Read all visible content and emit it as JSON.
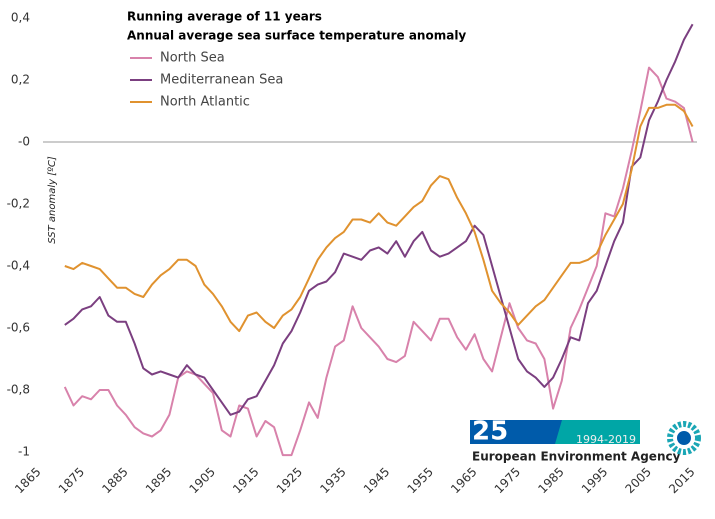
{
  "chart_data": {
    "type": "line",
    "title": "Running average of 11 years",
    "subtitle": "Annual average sea surface temperature anomaly",
    "y_label": "SST anomaly [ºC]",
    "x": [
      1870,
      1872,
      1874,
      1876,
      1878,
      1880,
      1882,
      1884,
      1886,
      1888,
      1890,
      1892,
      1894,
      1896,
      1898,
      1900,
      1902,
      1904,
      1906,
      1908,
      1910,
      1912,
      1914,
      1916,
      1918,
      1920,
      1922,
      1924,
      1926,
      1928,
      1930,
      1932,
      1934,
      1936,
      1938,
      1940,
      1942,
      1944,
      1946,
      1948,
      1950,
      1952,
      1954,
      1956,
      1958,
      1960,
      1962,
      1964,
      1966,
      1968,
      1970,
      1972,
      1974,
      1976,
      1978,
      1980,
      1982,
      1984,
      1986,
      1988,
      1990,
      1992,
      1994,
      1996,
      1998,
      2000,
      2002,
      2004,
      2006,
      2008,
      2010,
      2012,
      2014
    ],
    "series": [
      {
        "name": "North Sea",
        "color": "#d882ab",
        "values": [
          -0.79,
          -0.85,
          -0.82,
          -0.83,
          -0.8,
          -0.8,
          -0.85,
          -0.88,
          -0.92,
          -0.94,
          -0.95,
          -0.93,
          -0.88,
          -0.76,
          -0.74,
          -0.75,
          -0.78,
          -0.81,
          -0.93,
          -0.95,
          -0.85,
          -0.86,
          -0.95,
          -0.9,
          -0.92,
          -1.01,
          -1.01,
          -0.93,
          -0.84,
          -0.89,
          -0.76,
          -0.66,
          -0.64,
          -0.53,
          -0.6,
          -0.63,
          -0.66,
          -0.7,
          -0.71,
          -0.69,
          -0.58,
          -0.61,
          -0.64,
          -0.57,
          -0.57,
          -0.63,
          -0.67,
          -0.62,
          -0.7,
          -0.74,
          -0.63,
          -0.52,
          -0.6,
          -0.64,
          -0.65,
          -0.7,
          -0.86,
          -0.77,
          -0.6,
          -0.54,
          -0.47,
          -0.4,
          -0.23,
          -0.24,
          -0.15,
          -0.03,
          0.1,
          0.24,
          0.21,
          0.14,
          0.13,
          0.11,
          0.0
        ]
      },
      {
        "name": "Mediterranean Sea",
        "color": "#7b3f80",
        "values": [
          -0.59,
          -0.57,
          -0.54,
          -0.53,
          -0.5,
          -0.56,
          -0.58,
          -0.58,
          -0.65,
          -0.73,
          -0.75,
          -0.74,
          -0.75,
          -0.76,
          -0.72,
          -0.75,
          -0.76,
          -0.8,
          -0.84,
          -0.88,
          -0.87,
          -0.83,
          -0.82,
          -0.77,
          -0.72,
          -0.65,
          -0.61,
          -0.55,
          -0.48,
          -0.46,
          -0.45,
          -0.42,
          -0.36,
          -0.37,
          -0.38,
          -0.35,
          -0.34,
          -0.36,
          -0.32,
          -0.37,
          -0.32,
          -0.29,
          -0.35,
          -0.37,
          -0.36,
          -0.34,
          -0.32,
          -0.27,
          -0.3,
          -0.4,
          -0.5,
          -0.6,
          -0.7,
          -0.74,
          -0.76,
          -0.79,
          -0.76,
          -0.7,
          -0.63,
          -0.64,
          -0.52,
          -0.48,
          -0.4,
          -0.32,
          -0.26,
          -0.08,
          -0.05,
          0.07,
          0.13,
          0.2,
          0.26,
          0.33,
          0.38
        ]
      },
      {
        "name": "North Atlantic",
        "color": "#e0922f",
        "values": [
          -0.4,
          -0.41,
          -0.39,
          -0.4,
          -0.41,
          -0.44,
          -0.47,
          -0.47,
          -0.49,
          -0.5,
          -0.46,
          -0.43,
          -0.41,
          -0.38,
          -0.38,
          -0.4,
          -0.46,
          -0.49,
          -0.53,
          -0.58,
          -0.61,
          -0.56,
          -0.55,
          -0.58,
          -0.6,
          -0.56,
          -0.54,
          -0.5,
          -0.44,
          -0.38,
          -0.34,
          -0.31,
          -0.29,
          -0.25,
          -0.25,
          -0.26,
          -0.23,
          -0.26,
          -0.27,
          -0.24,
          -0.21,
          -0.19,
          -0.14,
          -0.11,
          -0.12,
          -0.18,
          -0.23,
          -0.29,
          -0.38,
          -0.48,
          -0.52,
          -0.55,
          -0.59,
          -0.56,
          -0.53,
          -0.51,
          -0.47,
          -0.43,
          -0.39,
          -0.39,
          -0.38,
          -0.36,
          -0.3,
          -0.25,
          -0.2,
          -0.09,
          0.05,
          0.11,
          0.11,
          0.12,
          0.12,
          0.1,
          0.05
        ]
      }
    ],
    "xlim": [
      1865,
      2015
    ],
    "xticks": [
      1865,
      1875,
      1885,
      1895,
      1905,
      1915,
      1925,
      1935,
      1945,
      1955,
      1965,
      1975,
      1985,
      1995,
      2005,
      2015
    ],
    "ylim": [
      -1,
      0.4
    ],
    "yticks": [
      {
        "value": 0.4,
        "label": "0,4"
      },
      {
        "value": 0.2,
        "label": "0,2"
      },
      {
        "value": 0,
        "label": "-0"
      },
      {
        "value": -0.2,
        "label": "-0,2"
      },
      {
        "value": -0.4,
        "label": "-0,4"
      },
      {
        "value": -0.6,
        "label": "-0,6"
      },
      {
        "value": -0.8,
        "label": "-0,8"
      },
      {
        "value": -1,
        "label": "-1"
      }
    ],
    "zero_line": true
  },
  "logo": {
    "number": "25",
    "years": "1994-2019",
    "name": "European Environment Agency"
  }
}
